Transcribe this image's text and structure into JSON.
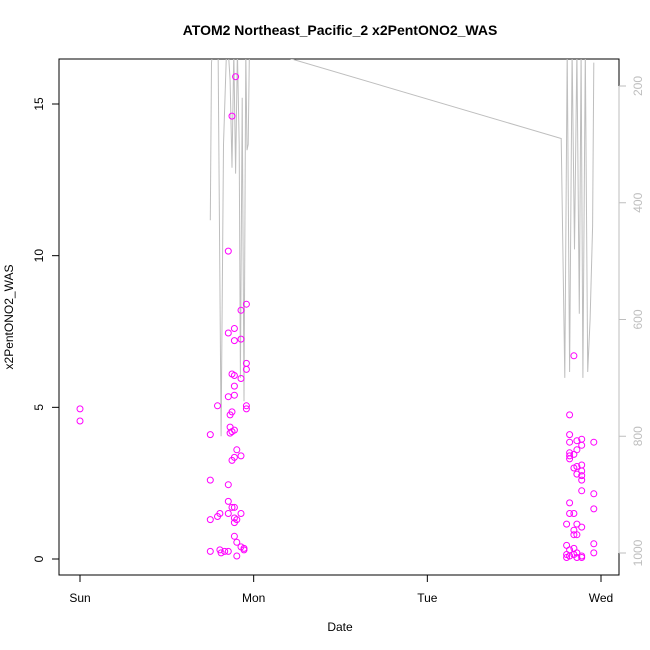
{
  "chart_data": {
    "type": "scatter",
    "title": "ATOM2 Northeast_Pacific_2 x2PentONO2_WAS",
    "xlabel": "Date",
    "ylabel": "x2PentONO2_WAS",
    "x_ticks": [
      "Sun",
      "Mon",
      "Tue",
      "Wed"
    ],
    "xlim": [
      "2016-08-14 00:00",
      "2016-08-17 00:00"
    ],
    "ylim": [
      0,
      16.5
    ],
    "y_ticks": [
      0,
      5,
      10,
      15
    ],
    "y2_ticks": [
      200,
      400,
      600,
      800,
      1000
    ],
    "y2lim": [
      1010,
      140
    ],
    "grid": false,
    "marker_color": "#ff00ff",
    "line_color": "#bebebe",
    "series": [
      {
        "values": [
          [
            "2016-08-14 00:00",
            4.95
          ],
          [
            "2016-08-14 00:00",
            4.55
          ],
          [
            "2016-08-14 18:00",
            4.1
          ],
          [
            "2016-08-14 18:00",
            2.6
          ],
          [
            "2016-08-14 18:00",
            1.3
          ],
          [
            "2016-08-14 18:00",
            0.25
          ],
          [
            "2016-08-14 19:00",
            1.4
          ],
          [
            "2016-08-14 19:00",
            5.05
          ],
          [
            "2016-08-14 19:20",
            1.5
          ],
          [
            "2016-08-14 19:20",
            0.3
          ],
          [
            "2016-08-14 19:30",
            0.2
          ],
          [
            "2016-08-14 20:00",
            0.25
          ],
          [
            "2016-08-14 20:30",
            10.15
          ],
          [
            "2016-08-14 20:30",
            7.45
          ],
          [
            "2016-08-14 20:30",
            5.35
          ],
          [
            "2016-08-14 20:30",
            2.45
          ],
          [
            "2016-08-14 20:30",
            1.9
          ],
          [
            "2016-08-14 20:30",
            1.5
          ],
          [
            "2016-08-14 20:30",
            0.25
          ],
          [
            "2016-08-14 20:45",
            4.75
          ],
          [
            "2016-08-14 20:45",
            4.35
          ],
          [
            "2016-08-14 20:45",
            4.15
          ],
          [
            "2016-08-14 21:00",
            14.6
          ],
          [
            "2016-08-14 21:00",
            6.1
          ],
          [
            "2016-08-14 21:00",
            4.85
          ],
          [
            "2016-08-14 21:00",
            4.2
          ],
          [
            "2016-08-14 21:00",
            3.25
          ],
          [
            "2016-08-14 21:00",
            1.7
          ],
          [
            "2016-08-14 21:20",
            7.6
          ],
          [
            "2016-08-14 21:20",
            7.2
          ],
          [
            "2016-08-14 21:20",
            6.05
          ],
          [
            "2016-08-14 21:20",
            5.7
          ],
          [
            "2016-08-14 21:20",
            5.4
          ],
          [
            "2016-08-14 21:20",
            4.25
          ],
          [
            "2016-08-14 21:20",
            3.35
          ],
          [
            "2016-08-14 21:20",
            1.7
          ],
          [
            "2016-08-14 21:20",
            1.35
          ],
          [
            "2016-08-14 21:20",
            1.2
          ],
          [
            "2016-08-14 21:20",
            0.75
          ],
          [
            "2016-08-14 21:30",
            15.9
          ],
          [
            "2016-08-14 21:40",
            3.6
          ],
          [
            "2016-08-14 21:40",
            1.3
          ],
          [
            "2016-08-14 21:40",
            0.55
          ],
          [
            "2016-08-14 21:40",
            0.1
          ],
          [
            "2016-08-14 22:15",
            8.2
          ],
          [
            "2016-08-14 22:15",
            7.25
          ],
          [
            "2016-08-14 22:15",
            5.95
          ],
          [
            "2016-08-14 22:15",
            3.4
          ],
          [
            "2016-08-14 22:15",
            1.5
          ],
          [
            "2016-08-14 22:15",
            0.4
          ],
          [
            "2016-08-14 22:40",
            0.35
          ],
          [
            "2016-08-14 22:40",
            0.3
          ],
          [
            "2016-08-14 23:00",
            8.4
          ],
          [
            "2016-08-14 23:00",
            6.45
          ],
          [
            "2016-08-14 23:00",
            6.25
          ],
          [
            "2016-08-14 23:00",
            5.05
          ],
          [
            "2016-08-14 23:00",
            4.95
          ],
          [
            "2016-08-16 19:15",
            1.15
          ],
          [
            "2016-08-16 19:15",
            0.45
          ],
          [
            "2016-08-16 19:15",
            0.15
          ],
          [
            "2016-08-16 19:15",
            0.05
          ],
          [
            "2016-08-16 19:40",
            4.75
          ],
          [
            "2016-08-16 19:40",
            4.1
          ],
          [
            "2016-08-16 19:40",
            3.85
          ],
          [
            "2016-08-16 19:40",
            3.5
          ],
          [
            "2016-08-16 19:40",
            3.4
          ],
          [
            "2016-08-16 19:40",
            3.3
          ],
          [
            "2016-08-16 19:40",
            1.85
          ],
          [
            "2016-08-16 19:40",
            1.5
          ],
          [
            "2016-08-16 19:40",
            0.3
          ],
          [
            "2016-08-16 19:40",
            0.1
          ],
          [
            "2016-08-16 20:15",
            6.7
          ],
          [
            "2016-08-16 20:15",
            3.45
          ],
          [
            "2016-08-16 20:15",
            3.0
          ],
          [
            "2016-08-16 20:15",
            1.5
          ],
          [
            "2016-08-16 20:15",
            0.95
          ],
          [
            "2016-08-16 20:15",
            0.8
          ],
          [
            "2016-08-16 20:15",
            0.35
          ],
          [
            "2016-08-16 20:15",
            0.15
          ],
          [
            "2016-08-16 20:40",
            3.9
          ],
          [
            "2016-08-16 20:40",
            3.6
          ],
          [
            "2016-08-16 20:40",
            3.05
          ],
          [
            "2016-08-16 20:40",
            2.8
          ],
          [
            "2016-08-16 20:40",
            1.15
          ],
          [
            "2016-08-16 20:40",
            0.8
          ],
          [
            "2016-08-16 20:40",
            0.2
          ],
          [
            "2016-08-16 20:40",
            0.05
          ],
          [
            "2016-08-16 21:20",
            3.95
          ],
          [
            "2016-08-16 21:20",
            3.75
          ],
          [
            "2016-08-16 21:20",
            3.1
          ],
          [
            "2016-08-16 21:20",
            2.9
          ],
          [
            "2016-08-16 21:20",
            2.75
          ],
          [
            "2016-08-16 21:20",
            2.6
          ],
          [
            "2016-08-16 21:20",
            2.25
          ],
          [
            "2016-08-16 21:20",
            1.05
          ],
          [
            "2016-08-16 21:20",
            0.1
          ],
          [
            "2016-08-16 21:20",
            0.05
          ],
          [
            "2016-08-16 23:00",
            3.85
          ],
          [
            "2016-08-16 23:00",
            2.15
          ],
          [
            "2016-08-16 23:00",
            1.65
          ],
          [
            "2016-08-16 23:00",
            0.5
          ],
          [
            "2016-08-16 23:00",
            0.2
          ]
        ]
      }
    ],
    "pressure_line": [
      [
        "2016-08-14 18:00",
        430
      ],
      [
        "2016-08-14 18:10",
        160
      ],
      [
        "2016-08-14 18:20",
        140
      ],
      [
        "2016-08-14 19:05",
        140
      ],
      [
        "2016-08-14 19:30",
        800
      ],
      [
        "2016-08-14 19:50",
        300
      ],
      [
        "2016-08-14 20:15",
        140
      ],
      [
        "2016-08-14 20:30",
        140
      ],
      [
        "2016-08-14 20:45",
        190
      ],
      [
        "2016-08-14 21:00",
        340
      ],
      [
        "2016-08-14 21:15",
        140
      ],
      [
        "2016-08-14 21:30",
        350
      ],
      [
        "2016-08-14 21:45",
        140
      ],
      [
        "2016-08-14 22:00",
        300
      ],
      [
        "2016-08-14 22:10",
        700
      ],
      [
        "2016-08-14 22:25",
        220
      ],
      [
        "2016-08-14 22:40",
        740
      ],
      [
        "2016-08-14 22:55",
        140
      ],
      [
        "2016-08-14 23:05",
        310
      ],
      [
        "2016-08-14 23:15",
        300
      ],
      [
        "2016-08-14 23:25",
        140
      ],
      [
        "2016-08-15 01:30",
        140
      ],
      [
        "2016-08-16 18:30",
        290
      ],
      [
        "2016-08-16 19:00",
        700
      ],
      [
        "2016-08-16 19:20",
        140
      ],
      [
        "2016-08-16 19:40",
        690
      ],
      [
        "2016-08-16 20:00",
        140
      ],
      [
        "2016-08-16 20:20",
        480
      ],
      [
        "2016-08-16 20:40",
        140
      ],
      [
        "2016-08-16 21:00",
        590
      ],
      [
        "2016-08-16 21:15",
        140
      ],
      [
        "2016-08-16 21:30",
        700
      ],
      [
        "2016-08-16 21:50",
        140
      ],
      [
        "2016-08-16 22:10",
        690
      ],
      [
        "2016-08-16 22:30",
        600
      ],
      [
        "2016-08-16 22:50",
        440
      ],
      [
        "2016-08-16 23:00",
        160
      ]
    ]
  }
}
